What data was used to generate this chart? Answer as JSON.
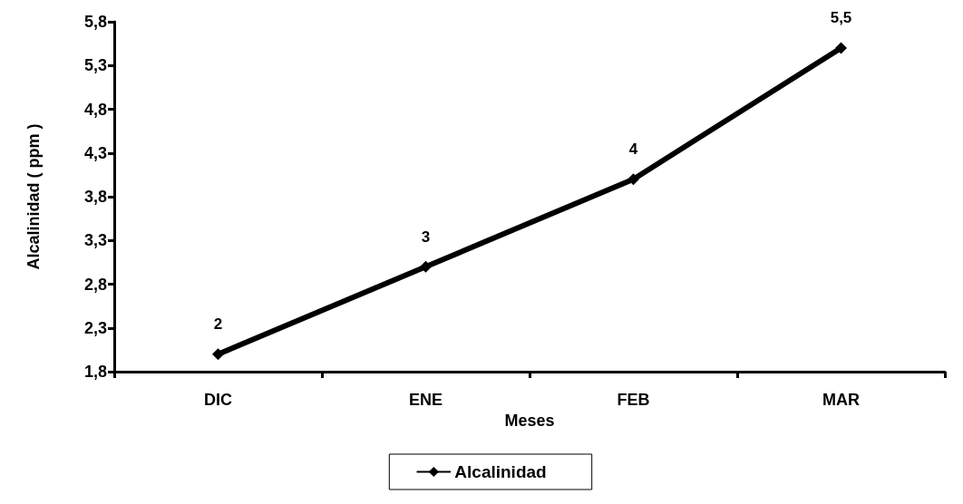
{
  "chart_data": {
    "type": "line",
    "xlabel": "Meses",
    "ylabel": "Alcalinidad ( ppm )",
    "categories": [
      "DIC",
      "ENE",
      "FEB",
      "MAR"
    ],
    "series": [
      {
        "name": "Alcalinidad",
        "color": "#000000",
        "values": [
          2,
          3,
          4,
          5.5
        ],
        "value_labels": [
          "2",
          "3",
          "4",
          "5,5"
        ]
      }
    ],
    "ylim": [
      1.8,
      5.8
    ],
    "yticks": [
      {
        "value": 1.8,
        "label": "1,8"
      },
      {
        "value": 2.3,
        "label": "2,3"
      },
      {
        "value": 2.8,
        "label": "2,8"
      },
      {
        "value": 3.3,
        "label": "3,3"
      },
      {
        "value": 3.8,
        "label": "3,8"
      },
      {
        "value": 4.3,
        "label": "4,3"
      },
      {
        "value": 4.8,
        "label": "4,8"
      },
      {
        "value": 5.3,
        "label": "5,3"
      },
      {
        "value": 5.8,
        "label": "5,8"
      }
    ],
    "grid": false,
    "legend": "bottom",
    "marker": "diamond",
    "line_style": "solid"
  }
}
